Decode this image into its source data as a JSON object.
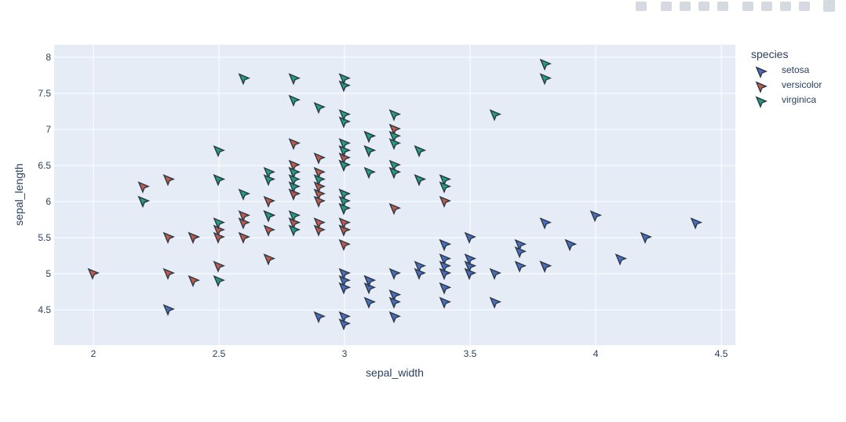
{
  "chart_data": {
    "type": "scatter",
    "x_label": "sepal_width",
    "y_label": "sepal_length",
    "legend_title": "species",
    "xlim": [
      1.844,
      4.556
    ],
    "ylim": [
      4.011,
      8.174
    ],
    "xticks": [
      2,
      2.5,
      3,
      3.5,
      4,
      4.5
    ],
    "yticks": [
      4.5,
      5,
      5.5,
      6,
      6.5,
      7,
      7.5,
      8
    ],
    "grid": true,
    "series": [
      {
        "name": "setosa",
        "color": "#4c6fc6",
        "x": [
          3.5,
          3.0,
          3.2,
          3.1,
          3.6,
          3.9,
          3.4,
          3.4,
          2.9,
          3.1,
          3.7,
          3.4,
          3.0,
          3.0,
          4.0,
          4.4,
          3.9,
          3.5,
          3.8,
          3.8,
          3.4,
          3.7,
          3.6,
          3.3,
          3.4,
          3.0,
          3.4,
          3.5,
          3.4,
          3.2,
          3.1,
          3.4,
          4.1,
          4.2,
          3.1,
          3.2,
          3.5,
          3.1,
          3.0,
          3.4,
          3.5,
          2.3,
          3.2,
          3.5,
          3.8,
          3.0,
          3.8,
          3.2,
          3.7,
          3.3
        ],
        "values": [
          5.1,
          4.9,
          4.7,
          4.6,
          5.0,
          5.4,
          4.6,
          5.0,
          4.4,
          4.9,
          5.4,
          4.8,
          4.8,
          4.3,
          5.8,
          5.7,
          5.4,
          5.1,
          5.7,
          5.1,
          5.4,
          5.1,
          4.6,
          5.1,
          4.8,
          5.0,
          5.0,
          5.2,
          5.2,
          4.7,
          4.8,
          5.4,
          5.2,
          5.5,
          4.9,
          5.0,
          5.5,
          4.9,
          4.4,
          5.1,
          5.0,
          4.5,
          4.4,
          5.0,
          5.1,
          4.8,
          5.1,
          4.6,
          5.3,
          5.0
        ]
      },
      {
        "name": "versicolor",
        "color": "#c95a44",
        "x": [
          3.2,
          3.2,
          3.1,
          2.3,
          2.8,
          2.8,
          3.3,
          2.4,
          2.9,
          2.7,
          2.0,
          3.0,
          2.2,
          2.9,
          2.9,
          3.1,
          3.0,
          2.7,
          2.2,
          2.5,
          3.2,
          2.8,
          2.5,
          2.8,
          2.9,
          3.0,
          2.8,
          3.0,
          2.9,
          2.6,
          2.4,
          2.4,
          2.7,
          2.7,
          3.0,
          3.4,
          3.1,
          2.3,
          3.0,
          2.5,
          2.6,
          3.0,
          2.6,
          2.3,
          2.7,
          3.0,
          2.9,
          2.9,
          2.5,
          2.8
        ],
        "values": [
          7.0,
          6.4,
          6.9,
          5.5,
          6.5,
          5.7,
          6.3,
          4.9,
          6.6,
          5.2,
          5.0,
          5.9,
          6.0,
          6.1,
          5.6,
          6.7,
          5.6,
          5.8,
          6.2,
          5.6,
          5.9,
          6.1,
          6.3,
          6.1,
          6.4,
          6.6,
          6.8,
          6.7,
          6.0,
          5.7,
          5.5,
          5.5,
          5.8,
          6.0,
          5.4,
          6.0,
          6.7,
          6.3,
          5.6,
          5.5,
          5.5,
          6.1,
          5.8,
          5.0,
          5.6,
          5.7,
          5.7,
          6.2,
          5.1,
          5.7
        ]
      },
      {
        "name": "virginica",
        "color": "#1fa37b",
        "x": [
          3.3,
          2.7,
          3.0,
          2.9,
          3.0,
          3.0,
          2.5,
          2.9,
          2.5,
          3.6,
          3.2,
          2.7,
          3.0,
          2.5,
          2.8,
          3.2,
          3.0,
          3.8,
          2.6,
          2.2,
          3.2,
          2.8,
          2.8,
          2.7,
          3.3,
          3.2,
          2.8,
          3.0,
          2.8,
          3.0,
          2.8,
          3.8,
          2.8,
          2.8,
          2.6,
          3.0,
          3.4,
          3.1,
          3.0,
          3.1,
          3.1,
          3.1,
          2.7,
          3.2,
          3.3,
          3.0,
          2.5,
          3.0,
          3.4,
          3.0
        ],
        "values": [
          6.3,
          5.8,
          7.1,
          6.3,
          6.5,
          7.6,
          4.9,
          7.3,
          6.7,
          7.2,
          6.5,
          6.4,
          6.8,
          5.7,
          5.8,
          6.4,
          6.5,
          7.7,
          7.7,
          6.0,
          6.9,
          5.6,
          7.7,
          6.3,
          6.7,
          7.2,
          6.2,
          6.1,
          6.4,
          7.2,
          7.4,
          7.9,
          6.4,
          6.3,
          6.1,
          7.7,
          6.3,
          6.4,
          6.0,
          6.9,
          6.7,
          6.9,
          5.8,
          6.8,
          6.7,
          6.7,
          6.3,
          6.5,
          6.2,
          5.9
        ]
      }
    ]
  }
}
